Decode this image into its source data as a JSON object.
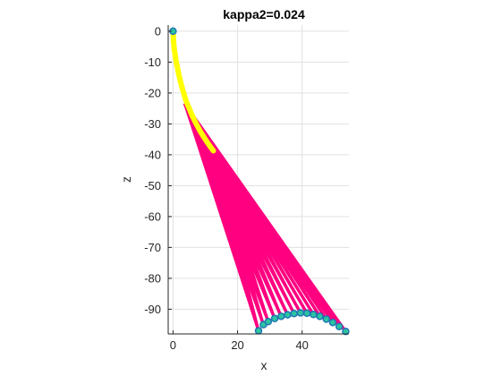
{
  "chart_data": {
    "type": "scatter",
    "title": "kappa2=0.024",
    "xlabel": "x",
    "ylabel": "z",
    "xlim": [
      -1.5,
      54.5
    ],
    "ylim": [
      -98,
      2
    ],
    "xticks": [
      0,
      20,
      40
    ],
    "yticks": [
      0,
      -10,
      -20,
      -30,
      -40,
      -50,
      -60,
      -70,
      -80,
      -90
    ],
    "grid": true,
    "colors": {
      "rod": "#ffff00",
      "lines": "#ff0080",
      "marker_edge": "#1f77b4",
      "marker_fill": "#2ec4a0",
      "axis": "#262626",
      "grid": "#e0e0e0"
    },
    "series": [
      {
        "name": "rod",
        "x": [
          0,
          0.1,
          0.2,
          0.4,
          0.7,
          1.0,
          1.5,
          2.0,
          2.6,
          3.3,
          4.0,
          5.0,
          6.0,
          7.2,
          8.5,
          10.0,
          11.3,
          12.5
        ],
        "y": [
          0,
          -2,
          -4,
          -6,
          -8,
          -10,
          -12.5,
          -15,
          -17.5,
          -20,
          -22.5,
          -25,
          -27.5,
          -30,
          -32.5,
          -35,
          -37,
          -38.7
        ]
      },
      {
        "name": "lines-start",
        "x": [
          3.6,
          4.4,
          5.2,
          6.0,
          6.9,
          7.8,
          8.7,
          9.6,
          10.5,
          11.3,
          12.5
        ],
        "y": [
          -23.4,
          -25.2,
          -27.0,
          -28.6,
          -30.2,
          -31.7,
          -33.2,
          -34.6,
          -36.0,
          -37.2,
          -38.7
        ]
      },
      {
        "name": "endpoints",
        "x": [
          26.5,
          28.0,
          29.5,
          31.5,
          33.5,
          35.5,
          37.5,
          39.5,
          41.5,
          43.5,
          45.5,
          47.5,
          49.5,
          51.5,
          53.5
        ],
        "y": [
          -97.0,
          -95.0,
          -94.0,
          -93.0,
          -92.3,
          -91.8,
          -91.4,
          -91.2,
          -91.3,
          -91.7,
          -92.3,
          -93.2,
          -94.3,
          -95.6,
          -97.2
        ]
      }
    ]
  }
}
